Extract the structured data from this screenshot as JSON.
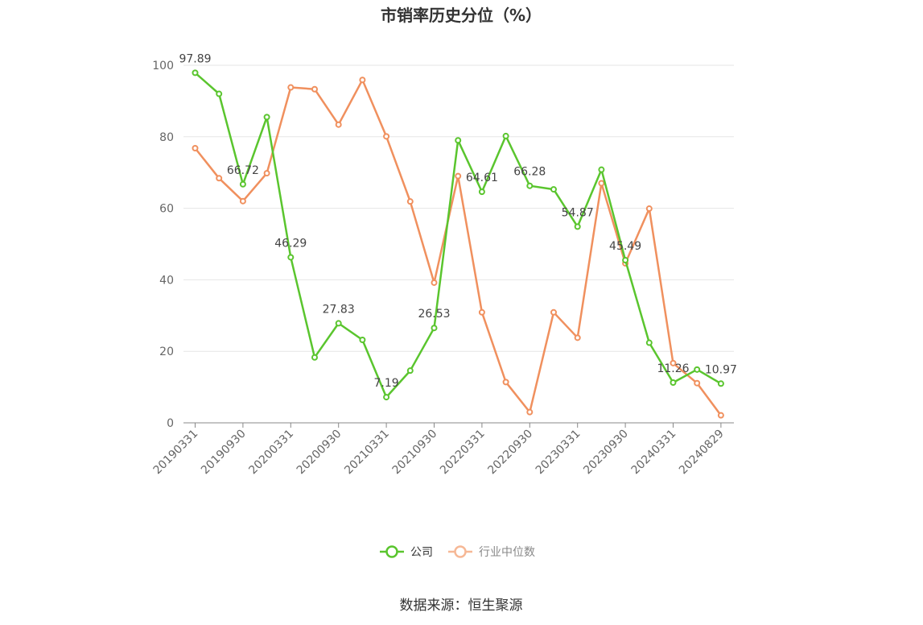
{
  "chart_data": {
    "type": "line",
    "title": "市销率历史分位（%）",
    "x": [
      "20190331",
      "20190630",
      "20190930",
      "20191231",
      "20200331",
      "20200630",
      "20200930",
      "20201231",
      "20210331",
      "20210630",
      "20210930",
      "20211231",
      "20220331",
      "20220630",
      "20220930",
      "20221231",
      "20230331",
      "20230630",
      "20230930",
      "20231231",
      "20240331",
      "20240630",
      "20240829"
    ],
    "x_tick_labels": [
      "20190331",
      "20190930",
      "20200331",
      "20200930",
      "20210331",
      "20210930",
      "20220331",
      "20220930",
      "20230331",
      "20230930",
      "20240331",
      "20240829"
    ],
    "ylim": [
      0,
      100
    ],
    "y_ticks": [
      0,
      20,
      40,
      60,
      80,
      100
    ],
    "grid": true,
    "legend_position": "bottom",
    "series": [
      {
        "name": "公司",
        "color": "#5ac52e",
        "values": [
          97.89,
          92.0,
          66.72,
          85.5,
          46.29,
          18.3,
          27.83,
          23.2,
          7.19,
          14.6,
          26.53,
          79.0,
          64.61,
          80.2,
          66.28,
          65.3,
          54.87,
          70.8,
          45.49,
          22.4,
          11.26,
          14.9,
          10.97
        ],
        "labels": {
          "0": "97.89",
          "2": "66.72",
          "4": "46.29",
          "6": "27.83",
          "8": "7.19",
          "10": "26.53",
          "12": "64.61",
          "14": "66.28",
          "16": "54.87",
          "18": "45.49",
          "20": "11.26",
          "22": "10.97"
        }
      },
      {
        "name": "行业中位数",
        "color": "#f0905e",
        "values": [
          76.8,
          68.4,
          62.0,
          69.8,
          93.8,
          93.3,
          83.4,
          95.9,
          80.1,
          61.9,
          39.2,
          69.0,
          30.9,
          11.4,
          3.0,
          30.9,
          23.8,
          67.0,
          44.6,
          59.9,
          16.7,
          11.1,
          2.1
        ]
      }
    ]
  },
  "source_text": "数据来源：恒生聚源"
}
